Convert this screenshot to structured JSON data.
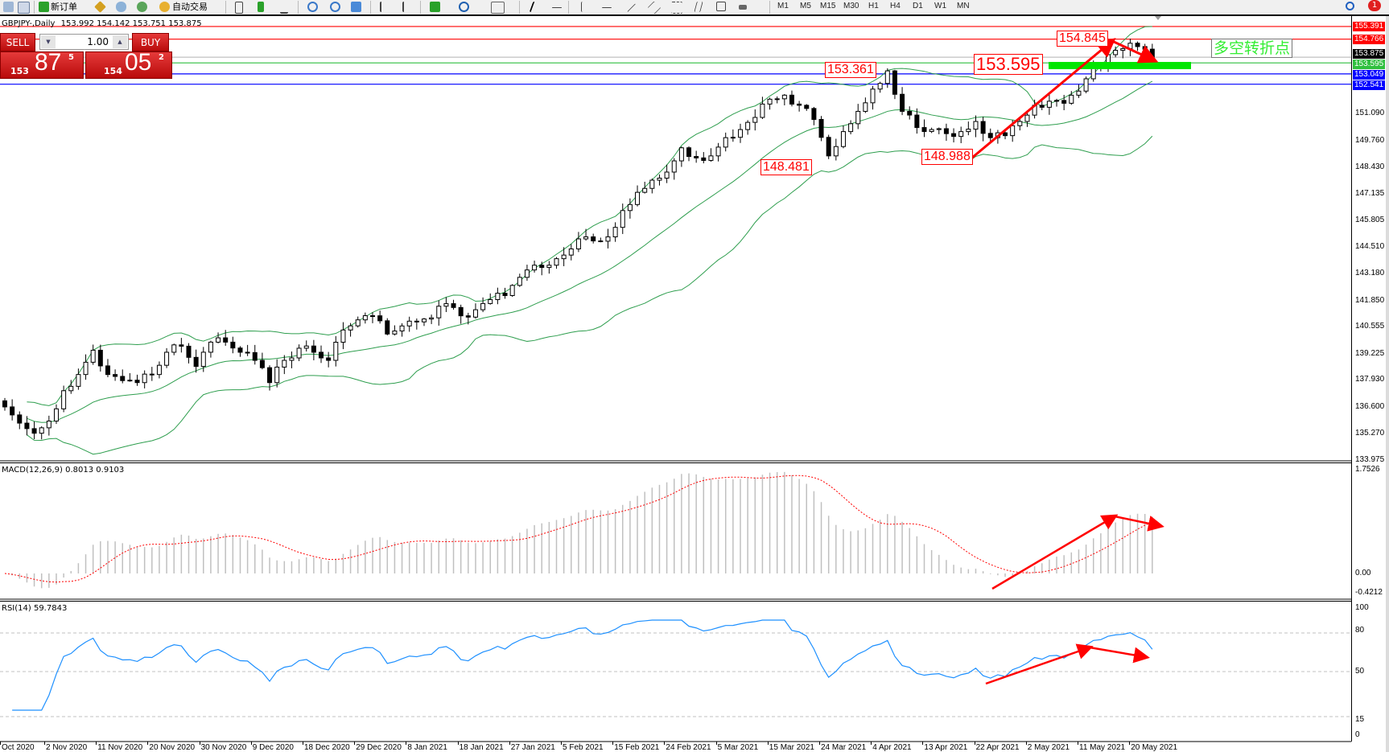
{
  "toolbar": {
    "new_order_label": "新订单",
    "auto_trading_label": "自动交易",
    "timeframes": [
      "M1",
      "M5",
      "M15",
      "M30",
      "H1",
      "H4",
      "D1",
      "W1",
      "MN"
    ],
    "notification_count": "1"
  },
  "chart_header": {
    "symbol": "GBPJPY-,Daily",
    "ohlc": "153.992 154.142 153.751 153.875"
  },
  "trade_panel": {
    "sell_label": "SELL",
    "buy_label": "BUY",
    "volume": "1.00",
    "sell_price": {
      "prefix": "153",
      "big": "87",
      "sup": "5"
    },
    "buy_price": {
      "prefix": "154",
      "big": "05",
      "sup": "2"
    }
  },
  "annotations": {
    "high_1": "153.361",
    "low_1": "148.481",
    "level": "153.595",
    "low_2": "148.988",
    "high_2": "154.845",
    "turning_point": "多空转折点"
  },
  "colors": {
    "bull_candle": "#ffffff",
    "bear_candle": "#000000",
    "bollinger": "#2e9e4e",
    "macd_hist": "#c0c0c0",
    "macd_signal": "#ff0000",
    "rsi": "#1e90ff",
    "arrow": "#ff0000",
    "support_bar": "#00e600"
  },
  "price_axis": {
    "ticks": [
      "151.090",
      "149.760",
      "148.430",
      "147.135",
      "145.805",
      "144.510",
      "143.180",
      "141.850",
      "140.555",
      "139.225",
      "137.930",
      "136.600",
      "135.270",
      "133.975"
    ],
    "markers": [
      {
        "price": "155.391",
        "color": "#ff0000"
      },
      {
        "price": "154.766",
        "color": "#ff0000"
      },
      {
        "price": "153.875",
        "color": "#000000"
      },
      {
        "price": "153.595",
        "color": "#2fbf3f"
      },
      {
        "price": "153.049",
        "color": "#0000ff"
      },
      {
        "price": "152.541",
        "color": "#0000ff"
      }
    ]
  },
  "macd": {
    "label": "MACD(12,26,9) 0.8013 0.9103",
    "ticks": [
      "1.7526",
      "0.00",
      "-0.4212"
    ]
  },
  "rsi": {
    "label": "RSI(14) 59.7843",
    "ticks": [
      "100",
      "80",
      "50",
      "15",
      "0"
    ]
  },
  "date_axis": [
    "Oct 2020",
    "2 Nov 2020",
    "11 Nov 2020",
    "20 Nov 2020",
    "30 Nov 2020",
    "9 Dec 2020",
    "18 Dec 2020",
    "29 Dec 2020",
    "8 Jan 2021",
    "18 Jan 2021",
    "27 Jan 2021",
    "5 Feb 2021",
    "15 Feb 2021",
    "24 Feb 2021",
    "5 Mar 2021",
    "15 Mar 2021",
    "24 Mar 2021",
    "4 Apr 2021",
    "13 Apr 2021",
    "22 Apr 2021",
    "2 May 2021",
    "11 May 2021",
    "20 May 2021"
  ],
  "chart_data": {
    "type": "candlestick",
    "title": "GBPJPY-,Daily",
    "ylim": [
      133.975,
      155.391
    ],
    "indicators": [
      "Bollinger Bands",
      "MACD(12,26,9)",
      "RSI(14)"
    ],
    "closes": [
      136.6,
      135.8,
      135.3,
      135.9,
      137.4,
      138.2,
      139.4,
      138.2,
      137.9,
      137.8,
      138.2,
      139.3,
      139.6,
      138.6,
      139.8,
      139.8,
      139.3,
      138.9,
      137.8,
      138.9,
      139.5,
      139.3,
      138.9,
      140.4,
      140.9,
      141.1,
      140.2,
      140.6,
      140.8,
      141.0,
      141.7,
      141.1,
      141.4,
      141.9,
      142.1,
      143.0,
      143.6,
      143.6,
      144.1,
      144.9,
      144.8,
      145.0,
      146.3,
      147.2,
      147.8,
      148.2,
      149.4,
      148.9,
      149.0,
      149.9,
      150.3,
      150.9,
      151.8,
      152.0,
      151.5,
      150.8,
      149.0,
      150.2,
      151.2,
      152.3,
      153.2,
      151.2,
      150.4,
      150.3,
      150.1,
      150.2,
      150.7,
      149.9,
      150.0,
      150.7,
      151.5,
      151.7,
      151.6,
      152.2,
      153.4,
      154.0,
      154.3,
      154.4,
      153.875
    ],
    "horizontal_lines": [
      155.391,
      154.766,
      153.875,
      153.595,
      153.049,
      152.541
    ],
    "macd_range": [
      -0.4212,
      1.7526
    ],
    "rsi_levels": [
      80,
      50,
      15
    ]
  }
}
